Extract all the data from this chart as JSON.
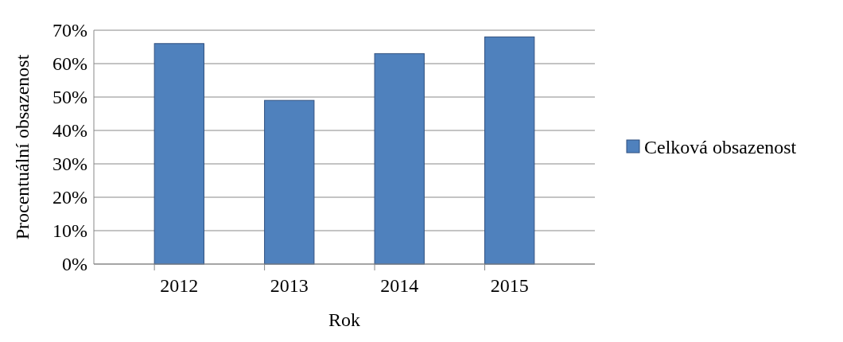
{
  "chart_data": {
    "type": "bar",
    "xlabel": "Rok",
    "ylabel": "Procentuální obsazenost",
    "categories": [
      "2012",
      "2013",
      "2014",
      "2015"
    ],
    "series": [
      {
        "name": "Celková obsazenost",
        "color": "#4f81bd",
        "values": [
          66,
          49,
          63,
          68
        ]
      }
    ],
    "ylim": [
      0,
      70
    ],
    "yticks": [
      {
        "value": 0,
        "label": "0%"
      },
      {
        "value": 10,
        "label": "10%"
      },
      {
        "value": 20,
        "label": "20%"
      },
      {
        "value": 30,
        "label": "30%"
      },
      {
        "value": 40,
        "label": "40%"
      },
      {
        "value": 50,
        "label": "50%"
      },
      {
        "value": 60,
        "label": "60%"
      },
      {
        "value": 70,
        "label": "70%"
      }
    ],
    "grid": "y",
    "legend": "right"
  }
}
